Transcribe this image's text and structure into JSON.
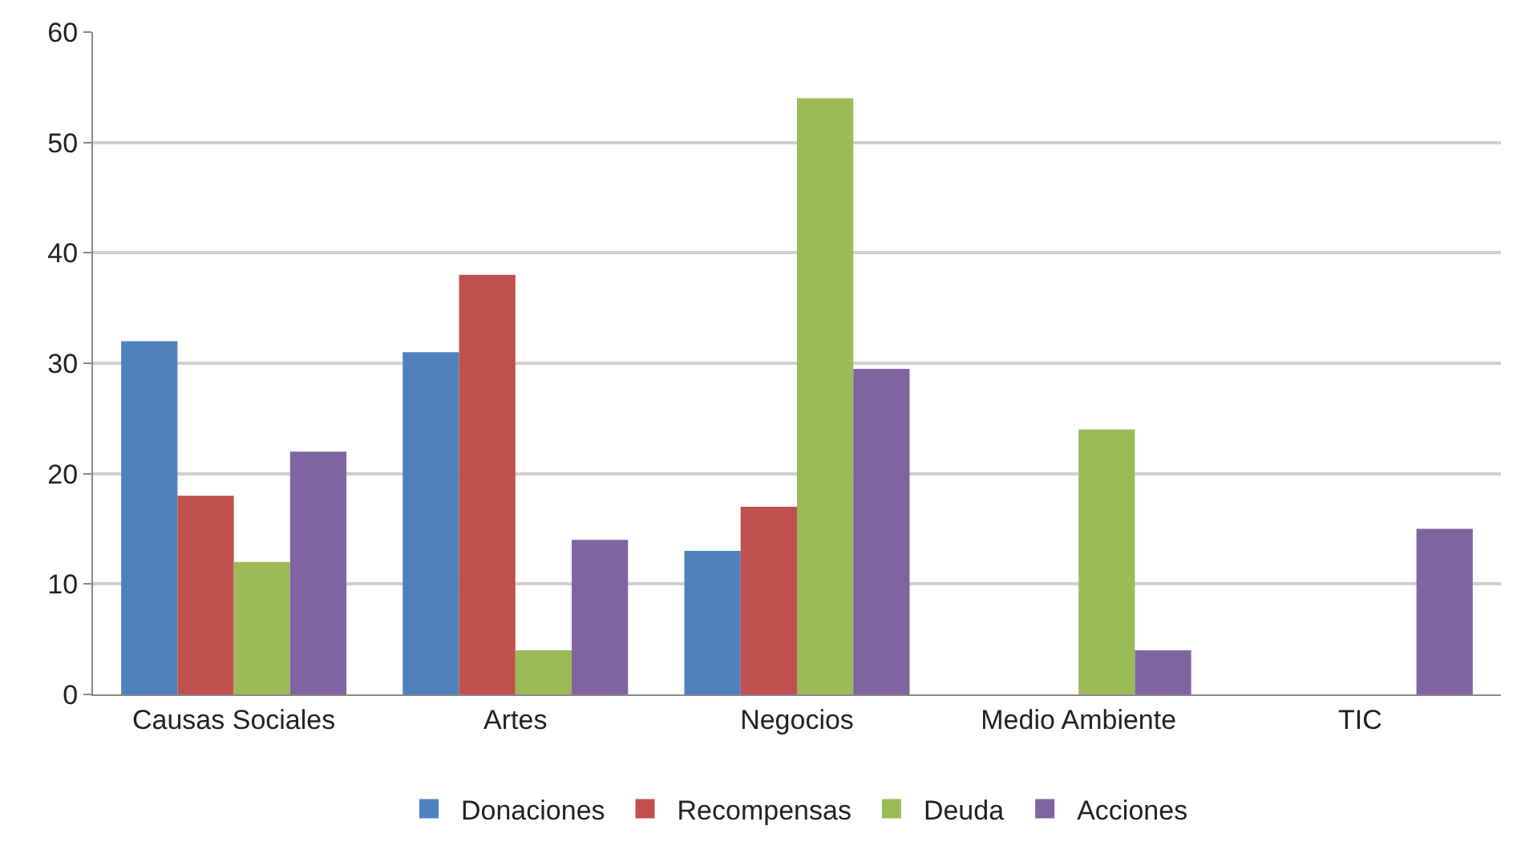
{
  "chart_data": {
    "type": "bar",
    "categories": [
      "Causas Sociales",
      "Artes",
      "Negocios",
      "Medio Ambiente",
      "TIC"
    ],
    "series": [
      {
        "name": "Donaciones",
        "color": "#4f81bd",
        "values": [
          32,
          31,
          13,
          0,
          0
        ]
      },
      {
        "name": "Recompensas",
        "color": "#c0504d",
        "values": [
          18,
          38,
          17,
          0,
          0
        ]
      },
      {
        "name": "Deuda",
        "color": "#9bbb59",
        "values": [
          12,
          4,
          54,
          24,
          0
        ]
      },
      {
        "name": "Acciones",
        "color": "#8064a2",
        "values": [
          22,
          14,
          29.5,
          4,
          15
        ]
      }
    ],
    "ylim": [
      0,
      60
    ],
    "yticks": [
      0,
      10,
      20,
      30,
      40,
      50,
      60
    ],
    "grid": "y",
    "legend": "bottom"
  }
}
